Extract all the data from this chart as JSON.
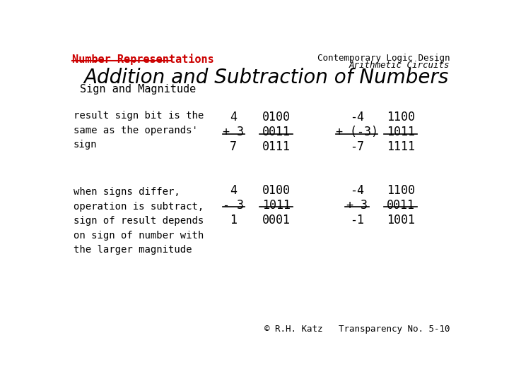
{
  "bg_color": "#ffffff",
  "top_right_line1": "Contemporary Logic Design",
  "top_right_line2": "Arithmetic Circuits",
  "top_left_label": "Number Representations",
  "main_title": "Addition and Subtraction of Numbers",
  "subtitle": "Sign and Magnitude",
  "desc1": "result sign bit is the\nsame as the operands'\nsign",
  "desc2": "when signs differ,\noperation is subtract,\nsign of result depends\non sign of number with\nthe larger magnitude",
  "footer": "© R.H. Katz   Transparency No. 5-10",
  "block1_left_nums": [
    "4",
    "+ 3",
    "7"
  ],
  "block1_left_bins": [
    "0100",
    "0011",
    "0111"
  ],
  "block1_right_nums": [
    "-4",
    "+ (-3)",
    "-7"
  ],
  "block1_right_bins": [
    "1100",
    "1011",
    "1111"
  ],
  "block2_left_nums": [
    "4",
    "- 3",
    "1"
  ],
  "block2_left_bins": [
    "0100",
    "1011",
    "0001"
  ],
  "block2_right_nums": [
    "-4",
    "+ 3",
    "-1"
  ],
  "block2_right_bins": [
    "1100",
    "0011",
    "1001"
  ]
}
